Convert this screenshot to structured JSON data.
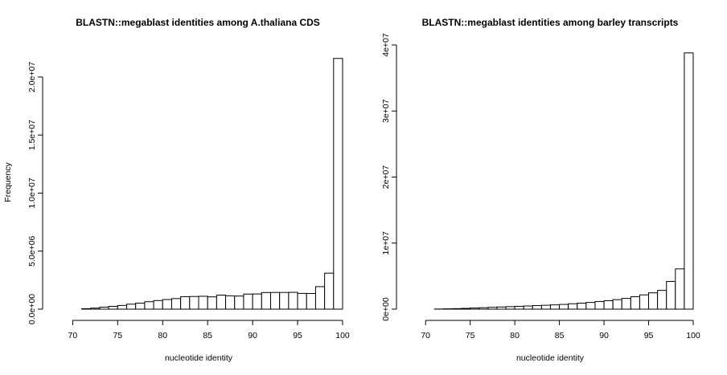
{
  "chart_data": [
    {
      "type": "bar",
      "title": "BLASTN::megablast identities among A.thaliana CDS",
      "xlabel": "nucleotide identity",
      "ylabel": "Frequency",
      "xlim": [
        68,
        100
      ],
      "ylim": [
        0,
        22000000
      ],
      "x_ticks": [
        70,
        75,
        80,
        85,
        90,
        95,
        100
      ],
      "x_tick_labels": [
        "70",
        "75",
        "80",
        "85",
        "90",
        "95",
        "100"
      ],
      "y_ticks": [
        0,
        5000000,
        10000000,
        15000000,
        20000000
      ],
      "y_tick_labels": [
        "0.0e+00",
        "5.0e+06",
        "1.0e+07",
        "1.5e+07",
        "2.0e+07"
      ],
      "grid": false,
      "bin_width": 1,
      "bins": [
        [
          68,
          0
        ],
        [
          69,
          0
        ],
        [
          70,
          0
        ],
        [
          71,
          40000
        ],
        [
          72,
          90000
        ],
        [
          73,
          170000
        ],
        [
          74,
          240000
        ],
        [
          75,
          320000
        ],
        [
          76,
          430000
        ],
        [
          77,
          520000
        ],
        [
          78,
          640000
        ],
        [
          79,
          740000
        ],
        [
          80,
          830000
        ],
        [
          81,
          910000
        ],
        [
          82,
          1070000
        ],
        [
          83,
          1090000
        ],
        [
          84,
          1110000
        ],
        [
          85,
          1060000
        ],
        [
          86,
          1210000
        ],
        [
          87,
          1150000
        ],
        [
          88,
          1130000
        ],
        [
          89,
          1300000
        ],
        [
          90,
          1310000
        ],
        [
          91,
          1430000
        ],
        [
          92,
          1440000
        ],
        [
          93,
          1440000
        ],
        [
          94,
          1450000
        ],
        [
          95,
          1360000
        ],
        [
          96,
          1350000
        ],
        [
          97,
          1940000
        ],
        [
          98,
          3100000
        ],
        [
          99,
          21600000
        ]
      ]
    },
    {
      "type": "bar",
      "title": "BLASTN::megablast identities among barley transcripts",
      "xlabel": "nucleotide identity",
      "ylabel": "",
      "xlim": [
        68,
        100
      ],
      "ylim": [
        0,
        40000000
      ],
      "x_ticks": [
        70,
        75,
        80,
        85,
        90,
        95,
        100
      ],
      "x_tick_labels": [
        "70",
        "75",
        "80",
        "85",
        "90",
        "95",
        "100"
      ],
      "y_ticks": [
        0,
        10000000,
        20000000,
        30000000,
        40000000
      ],
      "y_tick_labels": [
        "0e+00",
        "1e+07",
        "2e+07",
        "3e+07",
        "4e+07"
      ],
      "grid": false,
      "bin_width": 1,
      "bins": [
        [
          68,
          0
        ],
        [
          69,
          0
        ],
        [
          70,
          0
        ],
        [
          71,
          20000
        ],
        [
          72,
          50000
        ],
        [
          73,
          80000
        ],
        [
          74,
          120000
        ],
        [
          75,
          170000
        ],
        [
          76,
          220000
        ],
        [
          77,
          280000
        ],
        [
          78,
          330000
        ],
        [
          79,
          380000
        ],
        [
          80,
          430000
        ],
        [
          81,
          480000
        ],
        [
          82,
          540000
        ],
        [
          83,
          590000
        ],
        [
          84,
          650000
        ],
        [
          85,
          720000
        ],
        [
          86,
          820000
        ],
        [
          87,
          910000
        ],
        [
          88,
          1020000
        ],
        [
          89,
          1150000
        ],
        [
          90,
          1280000
        ],
        [
          91,
          1440000
        ],
        [
          92,
          1630000
        ],
        [
          93,
          1880000
        ],
        [
          94,
          2160000
        ],
        [
          95,
          2470000
        ],
        [
          96,
          2840000
        ],
        [
          97,
          4200000
        ],
        [
          98,
          6100000
        ],
        [
          99,
          38800000
        ]
      ]
    }
  ]
}
